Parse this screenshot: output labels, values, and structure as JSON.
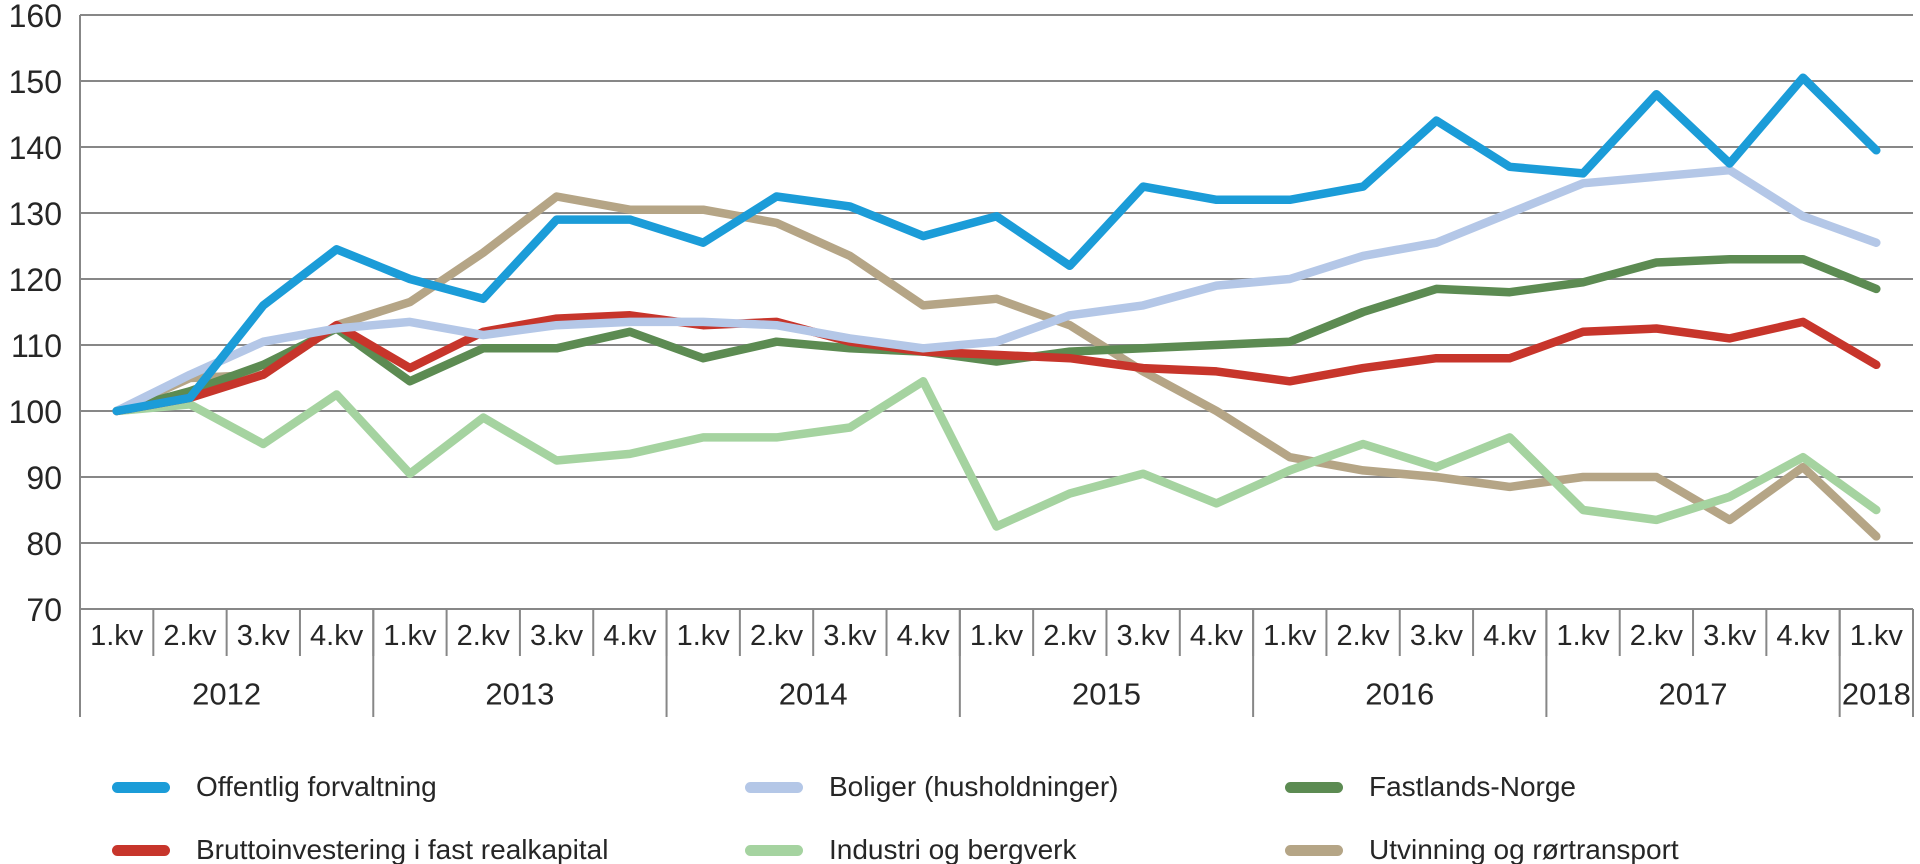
{
  "chart_data": {
    "type": "line",
    "title": "",
    "xlabel": "",
    "ylabel": "",
    "ylim": [
      70,
      160
    ],
    "yticks": [
      160,
      150,
      140,
      130,
      120,
      110,
      100,
      90,
      80,
      70
    ],
    "grid": true,
    "legend_position": "bottom",
    "axis_color": "#878787",
    "text_color": "#262626",
    "x_quarter_labels": [
      "1.kv",
      "2.kv",
      "3.kv",
      "4.kv",
      "1.kv",
      "2.kv",
      "3.kv",
      "4.kv",
      "1.kv",
      "2.kv",
      "3.kv",
      "4.kv",
      "1.kv",
      "2.kv",
      "3.kv",
      "4.kv",
      "1.kv",
      "2.kv",
      "3.kv",
      "4.kv",
      "1.kv",
      "2.kv",
      "3.kv",
      "4.kv",
      "1.kv"
    ],
    "years": [
      {
        "label": "2012",
        "quarters": 4
      },
      {
        "label": "2013",
        "quarters": 4
      },
      {
        "label": "2014",
        "quarters": 4
      },
      {
        "label": "2015",
        "quarters": 4
      },
      {
        "label": "2016",
        "quarters": 4
      },
      {
        "label": "2017",
        "quarters": 4
      },
      {
        "label": "2018",
        "quarters": 1
      }
    ],
    "series": [
      {
        "name": "Offentlig forvaltning",
        "color": "#1B9CD8",
        "values": [
          100,
          102,
          116,
          124.5,
          120,
          117,
          129,
          129,
          125.5,
          132.5,
          131,
          126.5,
          129.5,
          122,
          134,
          132,
          132,
          134,
          144,
          137,
          136,
          148,
          137.5,
          150.5,
          139.5
        ]
      },
      {
        "name": "Boliger (husholdninger)",
        "color": "#B4C7E7",
        "values": [
          100,
          105.5,
          110.5,
          112.5,
          113.5,
          111.5,
          113,
          113.5,
          113.5,
          113,
          111,
          109.5,
          110.5,
          114.5,
          116,
          119,
          120,
          123.5,
          125.5,
          130,
          134.5,
          135.5,
          136.5,
          129.5,
          125.5
        ]
      },
      {
        "name": "Fastlands-Norge",
        "color": "#5C8B52",
        "values": [
          100,
          103,
          107,
          112.5,
          104.5,
          109.5,
          109.5,
          112,
          108,
          110.5,
          109.5,
          109,
          107.5,
          109,
          109.5,
          110,
          110.5,
          115,
          118.5,
          118,
          119.5,
          122.5,
          123,
          123,
          118.5
        ]
      },
      {
        "name": "Bruttoinvestering i fast realkapital",
        "color": "#C7352B",
        "values": [
          100,
          102,
          105.5,
          113,
          106.5,
          112,
          114,
          114.5,
          113,
          113.5,
          110.5,
          109,
          108.5,
          108,
          106.5,
          106,
          104.5,
          106.5,
          108,
          108,
          112,
          112.5,
          111,
          113.5,
          107
        ]
      },
      {
        "name": "Industri og bergverk",
        "color": "#A5D3A0",
        "values": [
          100,
          101,
          95,
          102.5,
          90.5,
          99,
          92.5,
          93.5,
          96,
          96,
          97.5,
          104.5,
          82.5,
          87.5,
          90.5,
          86,
          91,
          95,
          91.5,
          96,
          85,
          83.5,
          87,
          93,
          85
        ]
      },
      {
        "name": "Utvinning og rørtransport",
        "color": "#B5A586",
        "values": [
          100,
          105,
          105.5,
          113,
          116.5,
          124,
          132.5,
          130.5,
          130.5,
          128.5,
          123.5,
          116,
          117,
          113,
          106,
          100,
          93,
          91,
          90,
          88.5,
          90,
          90,
          83.5,
          91.5,
          81
        ]
      }
    ],
    "draw_order": [
      5,
      4,
      2,
      3,
      1,
      0
    ],
    "legend_rows": [
      [
        0,
        1,
        2
      ],
      [
        3,
        4,
        5
      ]
    ]
  }
}
